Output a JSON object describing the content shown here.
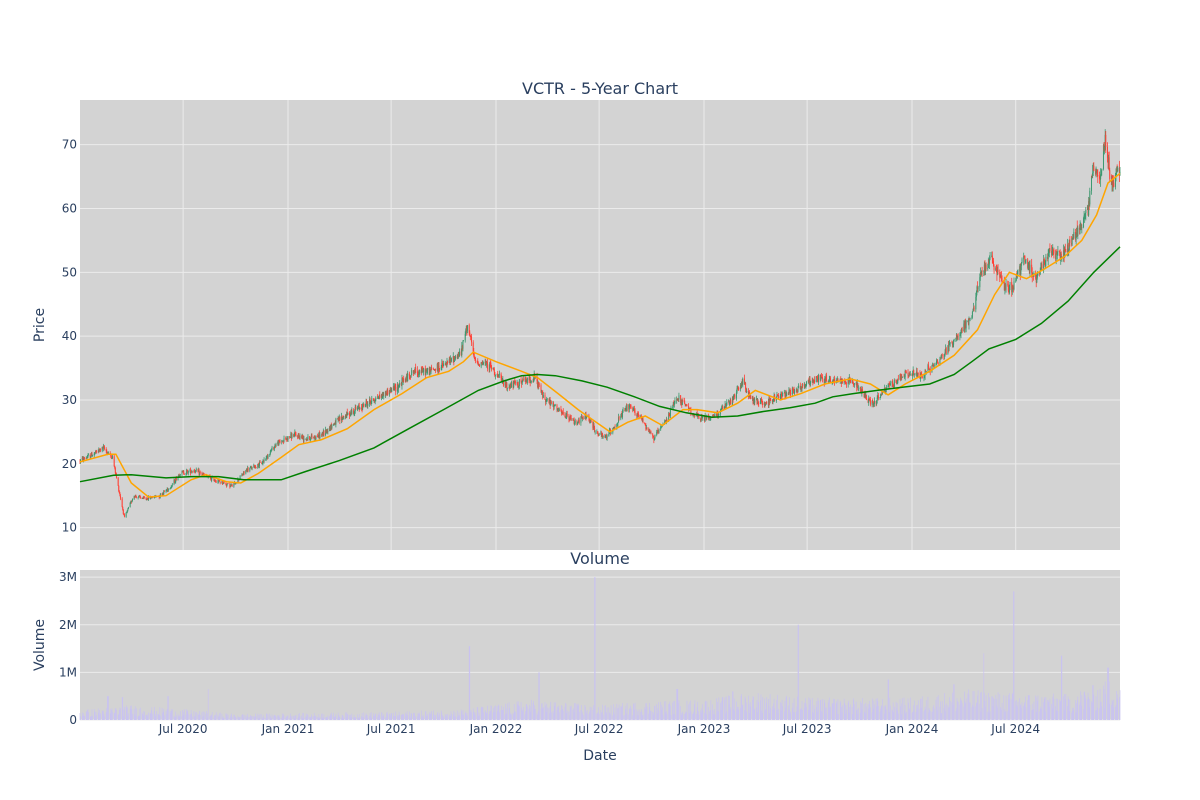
{
  "chart_data": [
    {
      "type": "candlestick",
      "title": "VCTR - 5-Year Chart",
      "xlabel": "",
      "ylabel": "Price",
      "xlim": [
        "2020-01-02",
        "2024-12-31"
      ],
      "ylim": [
        6.5,
        77
      ],
      "yticks": [
        10,
        20,
        30,
        40,
        50,
        60,
        70
      ],
      "grid": true,
      "legend": "none",
      "colors": {
        "plot_bg": "#d3d3d3",
        "grid": "#ebebeb",
        "up": "#3d9970",
        "down": "#ff4136",
        "ma_short": "#ffa500",
        "ma_long": "#008000"
      },
      "price_path": [
        [
          "2020-01-02",
          20.5
        ],
        [
          "2020-01-25",
          21.5
        ],
        [
          "2020-02-12",
          22.5
        ],
        [
          "2020-02-28",
          21
        ],
        [
          "2020-03-10",
          16
        ],
        [
          "2020-03-20",
          11.5
        ],
        [
          "2020-04-05",
          15
        ],
        [
          "2020-04-25",
          14.5
        ],
        [
          "2020-05-20",
          15
        ],
        [
          "2020-06-10",
          16.5
        ],
        [
          "2020-06-25",
          18.5
        ],
        [
          "2020-07-20",
          19
        ],
        [
          "2020-08-15",
          17.8
        ],
        [
          "2020-09-10",
          17
        ],
        [
          "2020-09-25",
          16.5
        ],
        [
          "2020-10-20",
          19
        ],
        [
          "2020-11-15",
          20
        ],
        [
          "2020-12-10",
          23
        ],
        [
          "2021-01-10",
          24.5
        ],
        [
          "2021-02-05",
          24
        ],
        [
          "2021-03-01",
          24.5
        ],
        [
          "2021-03-25",
          26.5
        ],
        [
          "2021-04-20",
          28
        ],
        [
          "2021-05-20",
          29.5
        ],
        [
          "2021-06-20",
          31
        ],
        [
          "2021-07-10",
          32
        ],
        [
          "2021-08-10",
          34.5
        ],
        [
          "2021-09-05",
          34.5
        ],
        [
          "2021-10-05",
          35.5
        ],
        [
          "2021-11-01",
          37.5
        ],
        [
          "2021-11-12",
          42
        ],
        [
          "2021-11-25",
          36
        ],
        [
          "2021-12-20",
          35.5
        ],
        [
          "2022-01-20",
          32
        ],
        [
          "2022-02-20",
          33
        ],
        [
          "2022-03-10",
          33.5
        ],
        [
          "2022-03-25",
          30.5
        ],
        [
          "2022-04-25",
          28
        ],
        [
          "2022-05-20",
          26.5
        ],
        [
          "2022-06-10",
          27.5
        ],
        [
          "2022-06-25",
          25
        ],
        [
          "2022-07-10",
          24
        ],
        [
          "2022-07-25",
          25.5
        ],
        [
          "2022-08-20",
          29
        ],
        [
          "2022-09-10",
          27.5
        ],
        [
          "2022-10-05",
          24
        ],
        [
          "2022-10-25",
          26.5
        ],
        [
          "2022-11-15",
          30.5
        ],
        [
          "2022-12-05",
          28.5
        ],
        [
          "2022-12-25",
          27
        ],
        [
          "2023-01-20",
          27.5
        ],
        [
          "2023-02-20",
          30
        ],
        [
          "2023-03-10",
          33
        ],
        [
          "2023-03-25",
          30
        ],
        [
          "2023-04-20",
          29.5
        ],
        [
          "2023-05-20",
          31
        ],
        [
          "2023-06-20",
          32
        ],
        [
          "2023-07-20",
          33.5
        ],
        [
          "2023-08-20",
          33
        ],
        [
          "2023-09-20",
          33
        ],
        [
          "2023-10-15",
          30
        ],
        [
          "2023-10-25",
          29.5
        ],
        [
          "2023-11-20",
          32
        ],
        [
          "2023-12-20",
          34
        ],
        [
          "2024-01-20",
          34
        ],
        [
          "2024-02-20",
          36.5
        ],
        [
          "2024-03-20",
          40
        ],
        [
          "2024-04-15",
          43
        ],
        [
          "2024-05-01",
          50
        ],
        [
          "2024-05-20",
          52
        ],
        [
          "2024-06-10",
          48
        ],
        [
          "2024-06-25",
          47.5
        ],
        [
          "2024-07-15",
          52
        ],
        [
          "2024-08-05",
          49
        ],
        [
          "2024-08-25",
          53
        ],
        [
          "2024-09-20",
          52.5
        ],
        [
          "2024-10-15",
          56
        ],
        [
          "2024-11-05",
          60
        ],
        [
          "2024-11-15",
          67
        ],
        [
          "2024-11-25",
          64
        ],
        [
          "2024-12-05",
          71
        ],
        [
          "2024-12-15",
          64
        ],
        [
          "2024-12-31",
          66
        ]
      ],
      "ma_short": [
        [
          "2020-01-02",
          20.3
        ],
        [
          "2020-02-20",
          21.5
        ],
        [
          "2020-03-05",
          21.5
        ],
        [
          "2020-04-01",
          17
        ],
        [
          "2020-05-01",
          14.8
        ],
        [
          "2020-06-01",
          15
        ],
        [
          "2020-07-15",
          17.5
        ],
        [
          "2020-08-10",
          18.3
        ],
        [
          "2020-09-15",
          17.2
        ],
        [
          "2020-10-10",
          17
        ],
        [
          "2020-11-10",
          18.5
        ],
        [
          "2020-12-20",
          21
        ],
        [
          "2021-01-20",
          23
        ],
        [
          "2021-03-01",
          23.8
        ],
        [
          "2021-04-15",
          25.5
        ],
        [
          "2021-06-01",
          28.5
        ],
        [
          "2021-07-20",
          31
        ],
        [
          "2021-09-01",
          33.5
        ],
        [
          "2021-10-10",
          34.5
        ],
        [
          "2021-11-05",
          36
        ],
        [
          "2021-11-22",
          37.5
        ],
        [
          "2022-01-01",
          36
        ],
        [
          "2022-02-15",
          34.5
        ],
        [
          "2022-03-15",
          33.5
        ],
        [
          "2022-04-20",
          31
        ],
        [
          "2022-05-25",
          28.5
        ],
        [
          "2022-07-20",
          25
        ],
        [
          "2022-08-20",
          26.5
        ],
        [
          "2022-09-20",
          27.5
        ],
        [
          "2022-10-20",
          26
        ],
        [
          "2022-11-25",
          28.5
        ],
        [
          "2022-12-20",
          28.5
        ],
        [
          "2023-01-25",
          28
        ],
        [
          "2023-03-01",
          29.5
        ],
        [
          "2023-04-01",
          31.5
        ],
        [
          "2023-05-15",
          30
        ],
        [
          "2023-06-20",
          31
        ],
        [
          "2023-08-01",
          32.5
        ],
        [
          "2023-09-15",
          33.3
        ],
        [
          "2023-10-20",
          32.5
        ],
        [
          "2023-11-20",
          30.8
        ],
        [
          "2023-12-20",
          32.5
        ],
        [
          "2024-02-01",
          34.5
        ],
        [
          "2024-03-15",
          37
        ],
        [
          "2024-04-25",
          41
        ],
        [
          "2024-05-25",
          46.5
        ],
        [
          "2024-06-20",
          50
        ],
        [
          "2024-07-20",
          49
        ],
        [
          "2024-08-20",
          50.5
        ],
        [
          "2024-09-25",
          52.5
        ],
        [
          "2024-10-25",
          55
        ],
        [
          "2024-11-20",
          59
        ],
        [
          "2024-12-10",
          64
        ],
        [
          "2024-12-31",
          65.5
        ]
      ],
      "ma_long": [
        [
          "2020-01-02",
          17.2
        ],
        [
          "2020-03-01",
          18.2
        ],
        [
          "2020-04-01",
          18.3
        ],
        [
          "2020-06-01",
          17.8
        ],
        [
          "2020-07-15",
          18
        ],
        [
          "2020-09-01",
          18
        ],
        [
          "2020-10-15",
          17.5
        ],
        [
          "2020-11-15",
          17.5
        ],
        [
          "2020-12-20",
          17.5
        ],
        [
          "2021-02-01",
          18.8
        ],
        [
          "2021-04-01",
          20.5
        ],
        [
          "2021-06-01",
          22.5
        ],
        [
          "2021-08-01",
          25.5
        ],
        [
          "2021-10-01",
          28.5
        ],
        [
          "2021-12-01",
          31.5
        ],
        [
          "2022-01-15",
          33
        ],
        [
          "2022-02-15",
          33.8
        ],
        [
          "2022-03-15",
          34
        ],
        [
          "2022-04-15",
          33.8
        ],
        [
          "2022-06-01",
          33
        ],
        [
          "2022-07-15",
          32
        ],
        [
          "2022-09-01",
          30.5
        ],
        [
          "2022-10-15",
          29
        ],
        [
          "2022-12-01",
          28
        ],
        [
          "2023-01-15",
          27.3
        ],
        [
          "2023-03-01",
          27.5
        ],
        [
          "2023-04-15",
          28.2
        ],
        [
          "2023-06-01",
          28.8
        ],
        [
          "2023-07-15",
          29.5
        ],
        [
          "2023-08-15",
          30.5
        ],
        [
          "2023-09-20",
          31
        ],
        [
          "2023-11-01",
          31.5
        ],
        [
          "2023-12-15",
          32
        ],
        [
          "2024-02-01",
          32.5
        ],
        [
          "2024-03-15",
          34
        ],
        [
          "2024-04-15",
          36
        ],
        [
          "2024-05-15",
          38
        ],
        [
          "2024-07-01",
          39.5
        ],
        [
          "2024-08-15",
          42
        ],
        [
          "2024-10-01",
          45.5
        ],
        [
          "2024-11-15",
          50
        ],
        [
          "2024-12-31",
          54
        ]
      ]
    },
    {
      "type": "bar",
      "title": "Volume",
      "xlabel": "Date",
      "ylabel": "Volume",
      "xlim": [
        "2020-01-02",
        "2024-12-31"
      ],
      "ylim": [
        0,
        3150000
      ],
      "yticks": [
        0,
        1000000,
        2000000,
        3000000
      ],
      "ytick_labels": [
        "0",
        "1M",
        "2M",
        "3M"
      ],
      "xticks": [
        "2020-07-01",
        "2021-01-01",
        "2021-07-01",
        "2022-01-01",
        "2022-07-01",
        "2023-01-01",
        "2023-07-01",
        "2024-01-01",
        "2024-07-01"
      ],
      "xtick_labels": [
        "Jul 2020",
        "Jan 2021",
        "Jul 2021",
        "Jan 2022",
        "Jul 2022",
        "Jan 2023",
        "Jul 2023",
        "Jan 2024",
        "Jul 2024"
      ],
      "grid": true,
      "colors": {
        "bar": "#c9c3f0"
      },
      "volume_baseline": [
        [
          "2020-01-02",
          150000
        ],
        [
          "2020-04-01",
          220000
        ],
        [
          "2020-07-01",
          160000
        ],
        [
          "2020-10-01",
          90000
        ],
        [
          "2021-01-01",
          100000
        ],
        [
          "2021-07-01",
          120000
        ],
        [
          "2021-11-01",
          160000
        ],
        [
          "2022-03-01",
          300000
        ],
        [
          "2022-07-01",
          220000
        ],
        [
          "2022-10-01",
          280000
        ],
        [
          "2023-01-01",
          300000
        ],
        [
          "2023-04-01",
          420000
        ],
        [
          "2023-07-01",
          330000
        ],
        [
          "2023-10-01",
          320000
        ],
        [
          "2024-01-01",
          330000
        ],
        [
          "2024-04-01",
          450000
        ],
        [
          "2024-07-01",
          400000
        ],
        [
          "2024-10-01",
          380000
        ],
        [
          "2024-12-31",
          650000
        ]
      ],
      "volume_spikes": [
        [
          "2020-02-20",
          500000
        ],
        [
          "2020-03-16",
          480000
        ],
        [
          "2020-06-05",
          500000
        ],
        [
          "2020-08-15",
          650000
        ],
        [
          "2021-11-15",
          1550000
        ],
        [
          "2022-03-18",
          1000000
        ],
        [
          "2022-06-24",
          3000000
        ],
        [
          "2022-11-15",
          650000
        ],
        [
          "2023-02-20",
          600000
        ],
        [
          "2023-06-16",
          2000000
        ],
        [
          "2023-11-20",
          850000
        ],
        [
          "2024-03-15",
          750000
        ],
        [
          "2024-05-05",
          1400000
        ],
        [
          "2024-06-28",
          2700000
        ],
        [
          "2024-09-20",
          1350000
        ],
        [
          "2024-12-10",
          1100000
        ]
      ]
    }
  ]
}
